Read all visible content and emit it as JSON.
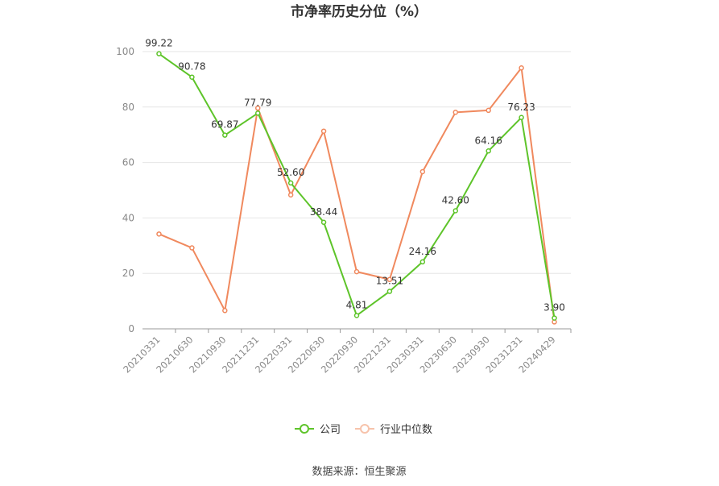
{
  "chart_data": {
    "type": "line",
    "title": "市净率历史分位（%）",
    "categories": [
      "20210331",
      "20210630",
      "20210930",
      "20211231",
      "20220331",
      "20220630",
      "20220930",
      "20221231",
      "20230331",
      "20230630",
      "20230930",
      "20231231",
      "20240429"
    ],
    "series": [
      {
        "name": "公司",
        "color": "#5ec42a",
        "values": [
          99.22,
          90.78,
          69.87,
          77.79,
          52.6,
          38.44,
          4.81,
          13.51,
          24.16,
          42.6,
          64.16,
          76.23,
          3.9
        ],
        "labels": [
          "99.22",
          "90.78",
          "69.87",
          "77.79",
          "52.60",
          "38.44",
          "4.81",
          "13.51",
          "24.16",
          "42.60",
          "64.16",
          "76.23",
          "3.90"
        ]
      },
      {
        "name": "行业中位数",
        "color": "#f0895e",
        "values": [
          34.2,
          29.2,
          6.6,
          79.6,
          48.3,
          71.3,
          20.6,
          17.8,
          56.7,
          78.1,
          78.8,
          94.1,
          2.5
        ]
      }
    ],
    "yticks": [
      "0",
      "20",
      "40",
      "60",
      "80",
      "100"
    ],
    "ylim": [
      0,
      100
    ],
    "grid": true,
    "legend_position": "bottom"
  },
  "source_text": "数据来源：恒生聚源"
}
